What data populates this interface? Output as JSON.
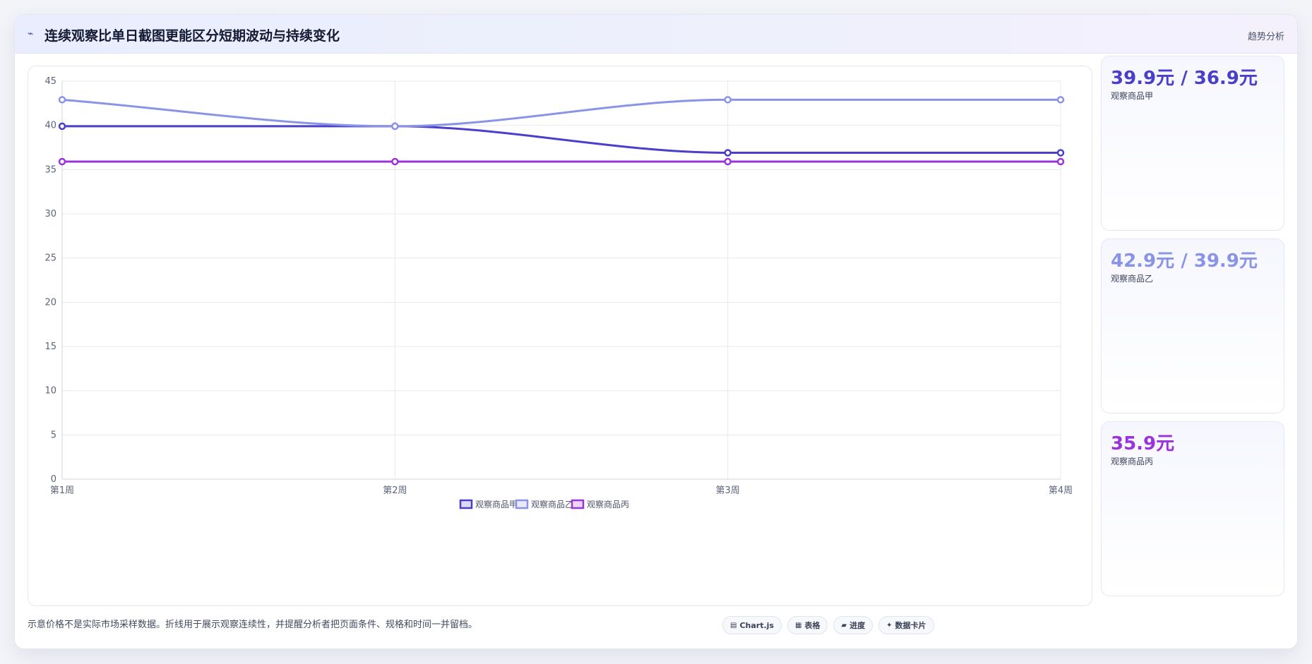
{
  "header": {
    "icon": "chart-line-icon",
    "title": "连续观察比单日截图更能区分短期波动与持续变化",
    "right_label": "趋势分析"
  },
  "chart_data": {
    "type": "line",
    "categories": [
      "第1周",
      "第2周",
      "第3周",
      "第4周"
    ],
    "series": [
      {
        "name": "观察商品甲",
        "values": [
          39.9,
          39.9,
          36.9,
          36.9
        ],
        "color": "#4a3fc9"
      },
      {
        "name": "观察商品乙",
        "values": [
          42.9,
          39.9,
          42.9,
          42.9
        ],
        "color": "#8a94e6"
      },
      {
        "name": "观察商品丙",
        "values": [
          35.9,
          35.9,
          35.9,
          35.9
        ],
        "color": "#9a33d9"
      }
    ],
    "ylim": [
      0,
      45
    ],
    "yticks": [
      0,
      5,
      10,
      15,
      20,
      25,
      30,
      35,
      40,
      45
    ],
    "grid": true,
    "legend_position": "bottom",
    "title": "",
    "xlabel": "",
    "ylabel": ""
  },
  "side_cards": [
    {
      "value": "39.9元 / 36.9元",
      "label": "观察商品甲",
      "color": "#4a3fc9"
    },
    {
      "value": "42.9元 / 39.9元",
      "label": "观察商品乙",
      "color": "#8a94e6"
    },
    {
      "value": "35.9元",
      "label": "观察商品丙",
      "color": "#9a33d9"
    }
  ],
  "footer": {
    "note": "示意价格不是实际市场采样数据。折线用于展示观察连续性，并提醒分析者把页面条件、规格和时间一并留档。",
    "badges": [
      {
        "icon": "chart-icon",
        "glyph": "▤",
        "label": "Chart.js"
      },
      {
        "icon": "table-icon",
        "glyph": "▦",
        "label": "表格"
      },
      {
        "icon": "progress-icon",
        "glyph": "▰",
        "label": "进度"
      },
      {
        "icon": "data-card-icon",
        "glyph": "✦",
        "label": "数据卡片"
      }
    ]
  }
}
